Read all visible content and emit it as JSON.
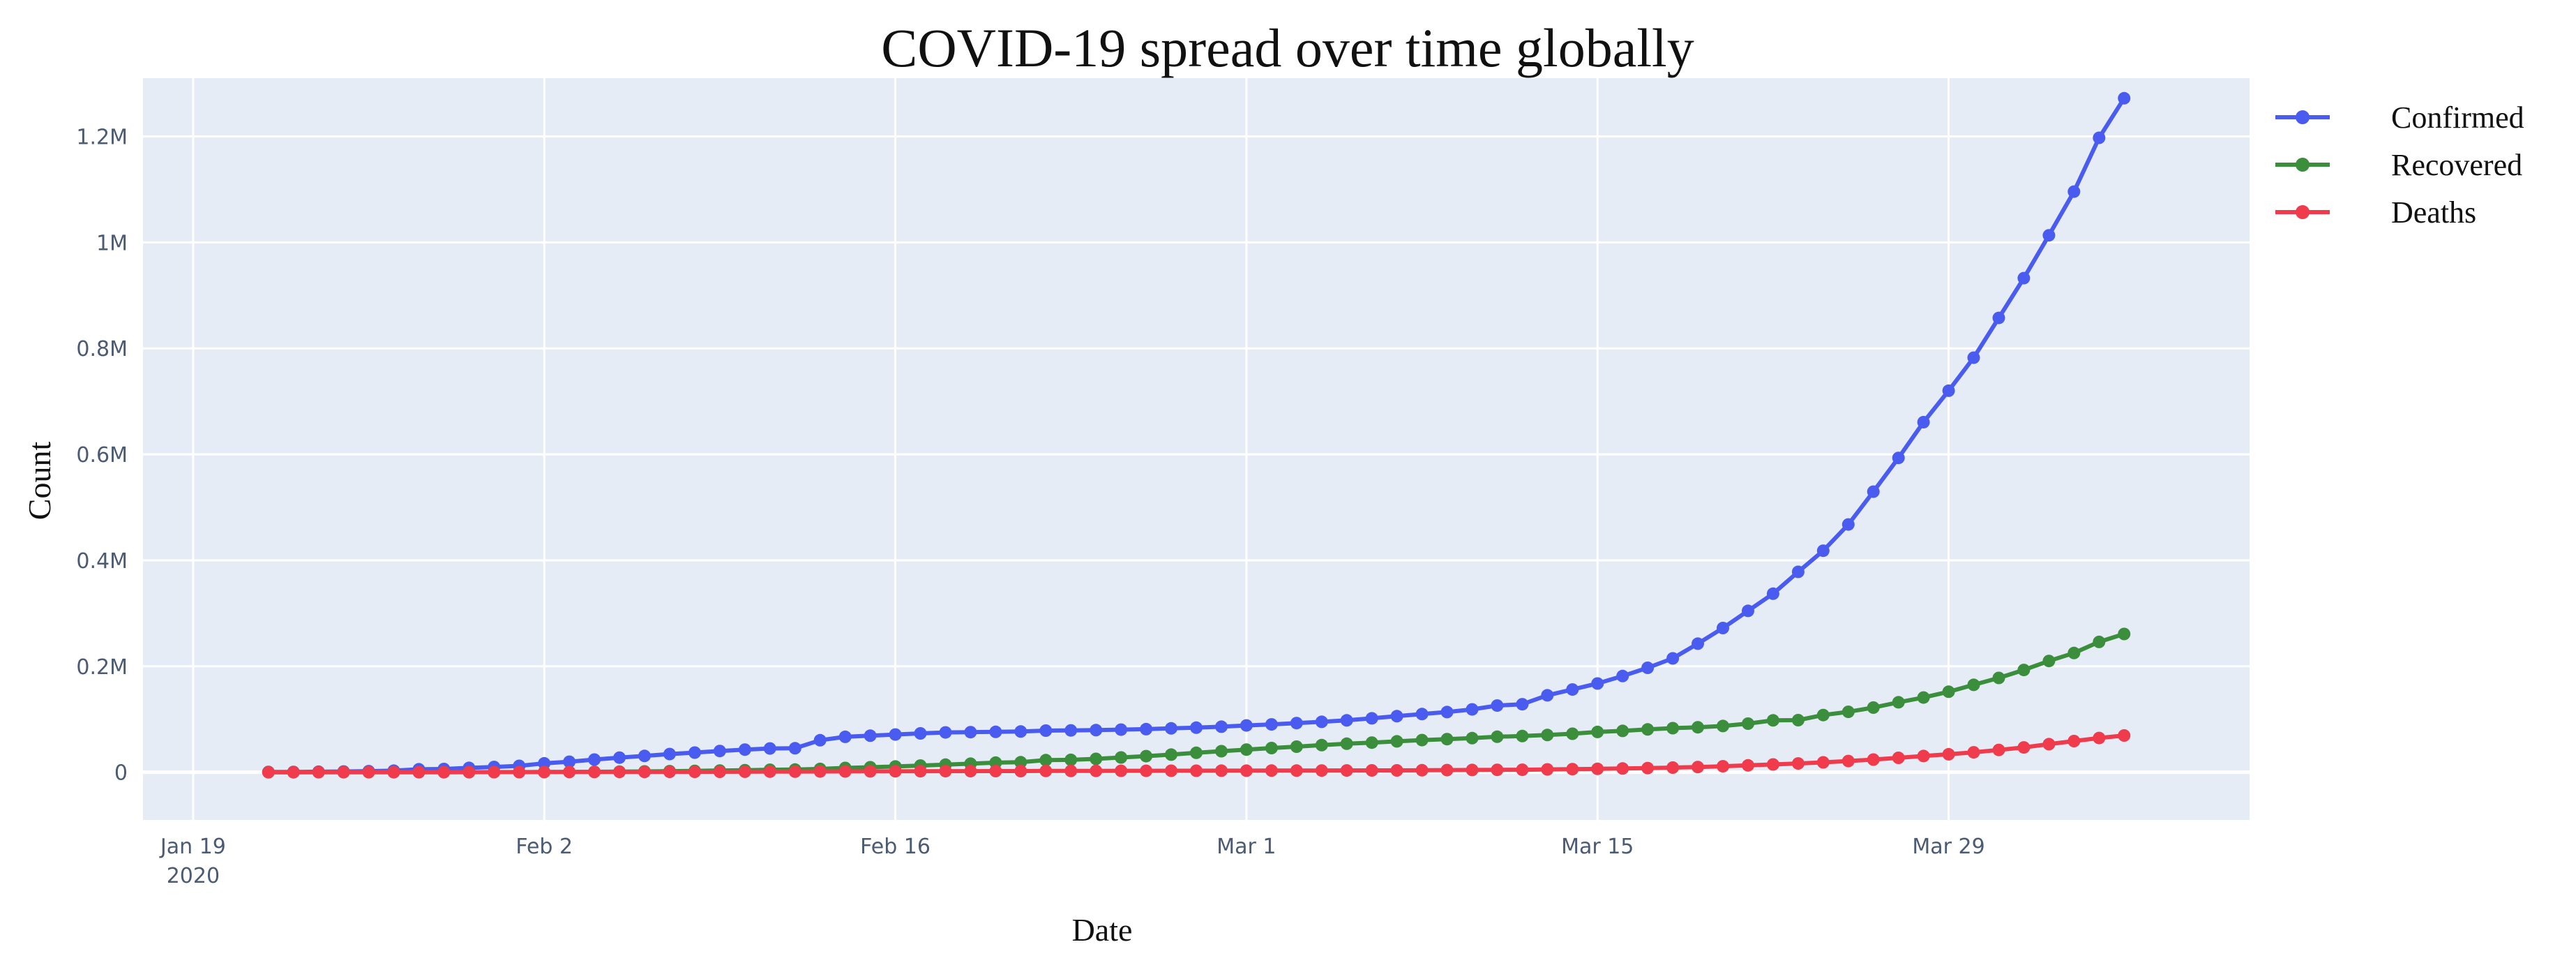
{
  "chart_data": {
    "type": "line",
    "title": "COVID-19 spread over time globally",
    "xlabel": "Date",
    "ylabel": "Count",
    "x_start": "2020-01-22",
    "x_end": "2020-04-05",
    "xlim": [
      "2020-01-17",
      "2020-04-10"
    ],
    "ylim": [
      -90000,
      1310000
    ],
    "x_ticks": [
      {
        "date": "2020-01-19",
        "label": "Jan 19",
        "sublabel": "2020"
      },
      {
        "date": "2020-02-02",
        "label": "Feb 2"
      },
      {
        "date": "2020-02-16",
        "label": "Feb 16"
      },
      {
        "date": "2020-03-01",
        "label": "Mar 1"
      },
      {
        "date": "2020-03-15",
        "label": "Mar 15"
      },
      {
        "date": "2020-03-29",
        "label": "Mar 29"
      }
    ],
    "y_ticks": [
      {
        "value": 0,
        "label": "0"
      },
      {
        "value": 200000,
        "label": "0.2M"
      },
      {
        "value": 400000,
        "label": "0.4M"
      },
      {
        "value": 600000,
        "label": "0.6M"
      },
      {
        "value": 800000,
        "label": "0.8M"
      },
      {
        "value": 1000000,
        "label": "1M"
      },
      {
        "value": 1200000,
        "label": "1.2M"
      }
    ],
    "grid": true,
    "legend_position": "right",
    "plot_background": "#e5ecf6",
    "series": [
      {
        "name": "Confirmed",
        "color": "#4a5cf0",
        "values": [
          555,
          654,
          941,
          1434,
          2118,
          2927,
          5578,
          6166,
          8234,
          9927,
          12038,
          16787,
          19881,
          23892,
          27635,
          30817,
          34391,
          37120,
          40150,
          42762,
          44802,
          45221,
          60368,
          66885,
          69030,
          71224,
          73258,
          75136,
          75639,
          76197,
          76819,
          78572,
          78958,
          79561,
          80406,
          81388,
          82746,
          84112,
          86011,
          88369,
          90306,
          92840,
          95120,
          97886,
          101801,
          105847,
          109821,
          113590,
          118620,
          125875,
          128343,
          145193,
          156097,
          167449,
          181546,
          197168,
          214915,
          242713,
          272167,
          304528,
          336953,
          378235,
          418045,
          467653,
          529591,
          593291,
          660706,
          720140,
          782389,
          857487,
          932605,
          1013466,
          1095917,
          1197405,
          1272115
        ]
      },
      {
        "name": "Recovered",
        "color": "#3b8e3b",
        "values": [
          28,
          30,
          36,
          39,
          52,
          61,
          107,
          126,
          143,
          222,
          284,
          472,
          623,
          852,
          1124,
          1487,
          2011,
          2616,
          3244,
          3946,
          4683,
          5150,
          6295,
          8058,
          9395,
          10865,
          12583,
          14352,
          16121,
          18177,
          18890,
          22886,
          23394,
          25227,
          27905,
          30384,
          33277,
          36711,
          39782,
          42716,
          45602,
          48228,
          51170,
          53796,
          55865,
          58358,
          60694,
          62494,
          64404,
          67003,
          68324,
          70251,
          72624,
          76034,
          78088,
          80840,
          83207,
          84854,
          87256,
          91692,
          97899,
          98351,
          108000,
          114000,
          122000,
          132000,
          141000,
          152000,
          165000,
          178000,
          193000,
          210000,
          225000,
          246000,
          261000
        ]
      },
      {
        "name": "Deaths",
        "color": "#ef3b4c",
        "values": [
          17,
          18,
          26,
          42,
          56,
          82,
          131,
          133,
          171,
          213,
          259,
          362,
          426,
          492,
          564,
          634,
          719,
          806,
          906,
          1013,
          1113,
          1118,
          1371,
          1523,
          1666,
          1770,
          1868,
          2007,
          2122,
          2247,
          2251,
          2458,
          2469,
          2629,
          2708,
          2770,
          2814,
          2872,
          2941,
          2996,
          3085,
          3160,
          3254,
          3348,
          3460,
          3558,
          3802,
          3988,
          4262,
          4615,
          4720,
          5404,
          5819,
          6440,
          7126,
          7905,
          8733,
          9867,
          11299,
          12973,
          14651,
          16505,
          18625,
          21181,
          23970,
          27198,
          30652,
          33925,
          37582,
          42107,
          46809,
          52983,
          58787,
          64606,
          69374
        ]
      }
    ]
  }
}
